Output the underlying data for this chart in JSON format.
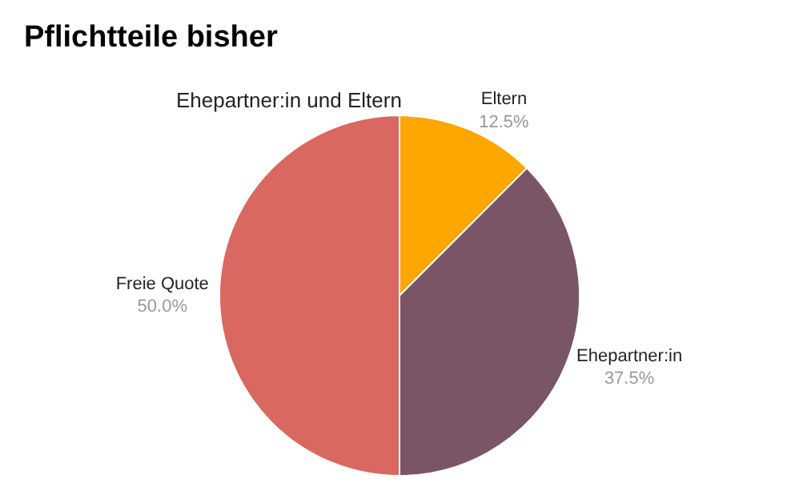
{
  "chart_data": {
    "type": "pie",
    "title": "Pflichtteile bisher",
    "subtitle": "Ehepartner:in und Eltern",
    "categories": [
      "Eltern",
      "Ehepartner:in",
      "Freie Quote"
    ],
    "values": [
      12.5,
      37.5,
      50
    ],
    "colors": [
      "#ffa600",
      "#7a5565",
      "#d96860"
    ],
    "value_labels": [
      "12.5%",
      "37.5%",
      "50.0%"
    ]
  }
}
